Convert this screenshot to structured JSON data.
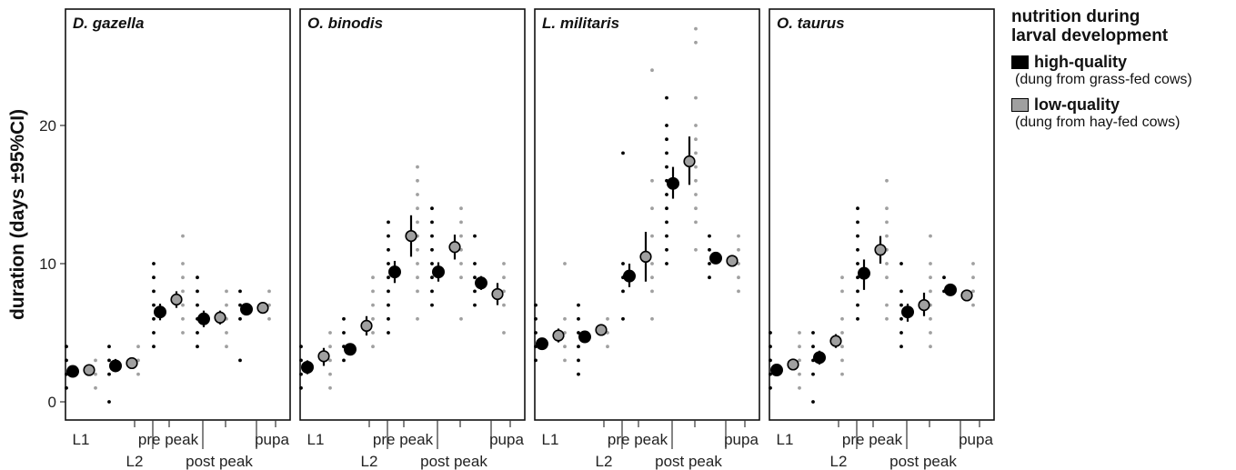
{
  "legend": {
    "title_line1": "nutrition during",
    "title_line2": "larval development",
    "items": [
      {
        "label": "high-quality",
        "note": "(dung from grass-fed cows)",
        "color": "#000000"
      },
      {
        "label": "low-quality",
        "note": "(dung from hay-fed cows)",
        "color": "#a0a0a0"
      }
    ]
  },
  "chart_data": {
    "type": "scatter",
    "ylabel": "duration (days ±95%CI)",
    "ylim": [
      -1,
      28
    ],
    "yticks": [
      0,
      10,
      20
    ],
    "grid": false,
    "legend_placement": "right",
    "categories": [
      "L1",
      "L2",
      "pre peak",
      "post peak",
      "pupa"
    ],
    "series_names": [
      "high-quality",
      "low-quality"
    ],
    "colors": {
      "high": "#000000",
      "low": "#a0a0a0",
      "raw_high": "#000000",
      "raw_low": "#a0a0a0"
    },
    "panels": [
      {
        "title": "D. gazella",
        "high": [
          {
            "mean": 2.2,
            "ci": [
              1.9,
              2.5
            ],
            "points": [
              1,
              2,
              3,
              4
            ]
          },
          {
            "mean": 2.6,
            "ci": [
              2.2,
              3.1
            ],
            "points": [
              0,
              2,
              3,
              4
            ]
          },
          {
            "mean": 6.5,
            "ci": [
              5.9,
              7.1
            ],
            "points": [
              4,
              5,
              6,
              7,
              8,
              9,
              10
            ]
          },
          {
            "mean": 6.0,
            "ci": [
              5.4,
              6.6
            ],
            "points": [
              4,
              5,
              6,
              7,
              8,
              9
            ]
          },
          {
            "mean": 6.7,
            "ci": [
              6.3,
              7.1
            ],
            "points": [
              3,
              6,
              7,
              8
            ]
          }
        ],
        "low": [
          {
            "mean": 2.3,
            "ci": [
              2.0,
              2.6
            ],
            "points": [
              1,
              2,
              3
            ]
          },
          {
            "mean": 2.8,
            "ci": [
              2.5,
              3.1
            ],
            "points": [
              2,
              3,
              4
            ]
          },
          {
            "mean": 7.4,
            "ci": [
              6.8,
              8.0
            ],
            "points": [
              5,
              6,
              7,
              8,
              9,
              10,
              12
            ]
          },
          {
            "mean": 6.1,
            "ci": [
              5.6,
              6.6
            ],
            "points": [
              4,
              5,
              6,
              7,
              8
            ]
          },
          {
            "mean": 6.8,
            "ci": [
              6.5,
              7.1
            ],
            "points": [
              6,
              7,
              8
            ]
          }
        ]
      },
      {
        "title": "O. binodis",
        "high": [
          {
            "mean": 2.5,
            "ci": [
              2.0,
              3.0
            ],
            "points": [
              1,
              2,
              3,
              4
            ]
          },
          {
            "mean": 3.8,
            "ci": [
              3.5,
              4.1
            ],
            "points": [
              3,
              4,
              5,
              6
            ]
          },
          {
            "mean": 9.4,
            "ci": [
              8.6,
              10.2
            ],
            "points": [
              5,
              6,
              7,
              8,
              9,
              10,
              11,
              12,
              13
            ]
          },
          {
            "mean": 9.4,
            "ci": [
              8.7,
              10.1
            ],
            "points": [
              7,
              8,
              9,
              10,
              11,
              12,
              13,
              14
            ]
          },
          {
            "mean": 8.6,
            "ci": [
              8.1,
              9.1
            ],
            "points": [
              7,
              8,
              9,
              10,
              12
            ]
          }
        ],
        "low": [
          {
            "mean": 3.3,
            "ci": [
              2.6,
              3.9
            ],
            "points": [
              1,
              2,
              3,
              4,
              5
            ]
          },
          {
            "mean": 5.5,
            "ci": [
              4.8,
              6.2
            ],
            "points": [
              4,
              5,
              6,
              7,
              8,
              9
            ]
          },
          {
            "mean": 12.0,
            "ci": [
              10.5,
              13.5
            ],
            "points": [
              6,
              8,
              9,
              10,
              11,
              12,
              13,
              14,
              15,
              16,
              17
            ]
          },
          {
            "mean": 11.2,
            "ci": [
              10.3,
              12.1
            ],
            "points": [
              6,
              9,
              10,
              11,
              12,
              13,
              14
            ]
          },
          {
            "mean": 7.8,
            "ci": [
              7.0,
              8.6
            ],
            "points": [
              5,
              7,
              8,
              9,
              10
            ]
          }
        ]
      },
      {
        "title": "L. militaris",
        "high": [
          {
            "mean": 4.2,
            "ci": [
              3.8,
              4.6
            ],
            "points": [
              3,
              4,
              5,
              6,
              7
            ]
          },
          {
            "mean": 4.7,
            "ci": [
              4.3,
              5.1
            ],
            "points": [
              2,
              3,
              4,
              5,
              6,
              7
            ]
          },
          {
            "mean": 9.1,
            "ci": [
              8.3,
              10.0
            ],
            "points": [
              6,
              8,
              9,
              10,
              18
            ]
          },
          {
            "mean": 15.8,
            "ci": [
              14.7,
              17.0
            ],
            "points": [
              10,
              11,
              12,
              13,
              14,
              15,
              16,
              17,
              18,
              19,
              20,
              22
            ]
          },
          {
            "mean": 10.4,
            "ci": [
              10.0,
              10.8
            ],
            "points": [
              9,
              10,
              11,
              12
            ]
          }
        ],
        "low": [
          {
            "mean": 4.8,
            "ci": [
              4.3,
              5.3
            ],
            "points": [
              3,
              4,
              5,
              6,
              10
            ]
          },
          {
            "mean": 5.2,
            "ci": [
              4.8,
              5.6
            ],
            "points": [
              4,
              5,
              6
            ]
          },
          {
            "mean": 10.5,
            "ci": [
              8.7,
              12.3
            ],
            "points": [
              6,
              8,
              9,
              10,
              12,
              14,
              16,
              24
            ]
          },
          {
            "mean": 17.4,
            "ci": [
              15.7,
              19.2
            ],
            "points": [
              11,
              13,
              14,
              15,
              16,
              17,
              18,
              19,
              20,
              22,
              26,
              27
            ]
          },
          {
            "mean": 10.2,
            "ci": [
              9.8,
              10.6
            ],
            "points": [
              8,
              9,
              10,
              11,
              12
            ]
          }
        ]
      },
      {
        "title": "O. taurus",
        "high": [
          {
            "mean": 2.3,
            "ci": [
              2.0,
              2.7
            ],
            "points": [
              1,
              2,
              3,
              4,
              5
            ]
          },
          {
            "mean": 3.2,
            "ci": [
              2.7,
              3.7
            ],
            "points": [
              0,
              2,
              3,
              4,
              5
            ]
          },
          {
            "mean": 9.3,
            "ci": [
              8.1,
              10.3
            ],
            "points": [
              6,
              7,
              8,
              9,
              10,
              11,
              12,
              13,
              14
            ]
          },
          {
            "mean": 6.5,
            "ci": [
              5.8,
              7.1
            ],
            "points": [
              4,
              5,
              6,
              7,
              8,
              10
            ]
          },
          {
            "mean": 8.1,
            "ci": [
              7.9,
              8.3
            ],
            "points": [
              8,
              9
            ]
          }
        ],
        "low": [
          {
            "mean": 2.7,
            "ci": [
              2.4,
              3.0
            ],
            "points": [
              1,
              2,
              3,
              4,
              5
            ]
          },
          {
            "mean": 4.4,
            "ci": [
              3.9,
              4.9
            ],
            "points": [
              2,
              3,
              4,
              5,
              6,
              8,
              9
            ]
          },
          {
            "mean": 11.0,
            "ci": [
              10.0,
              12.0
            ],
            "points": [
              6,
              7,
              9,
              10,
              11,
              12,
              13,
              14,
              16
            ]
          },
          {
            "mean": 7.0,
            "ci": [
              6.2,
              7.9
            ],
            "points": [
              4,
              5,
              6,
              7,
              8,
              9,
              10,
              12
            ]
          },
          {
            "mean": 7.7,
            "ci": [
              7.4,
              8.0
            ],
            "points": [
              7,
              8,
              9,
              10
            ]
          }
        ]
      }
    ]
  }
}
